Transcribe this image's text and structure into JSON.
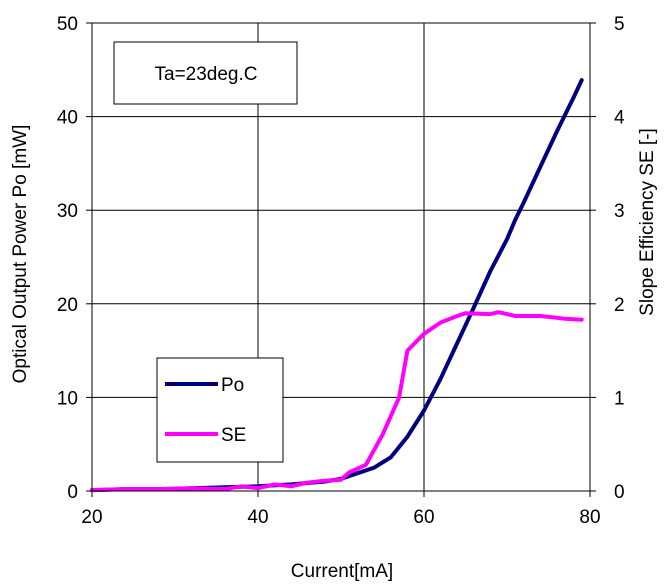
{
  "chart_data": {
    "type": "line",
    "xlabel": "Current[mA]",
    "ylabel_left": "Optical Output Power Po [mW]",
    "ylabel_right": "Slope Efficiency SE [-]",
    "xlim": [
      20,
      80
    ],
    "ylim_left": [
      0,
      50
    ],
    "ylim_right": [
      0,
      5
    ],
    "x_ticks": [
      "20",
      "40",
      "60",
      "80"
    ],
    "y_ticks_left": [
      "0",
      "10",
      "20",
      "30",
      "40",
      "50"
    ],
    "y_ticks_right": [
      "0",
      "1",
      "2",
      "3",
      "4",
      "5"
    ],
    "grid": true,
    "annotation": "Ta=23deg.C",
    "legend_position": "lower-left",
    "series": [
      {
        "name": "Po",
        "axis": "left",
        "color": "#00007f",
        "points": [
          [
            20,
            0.1
          ],
          [
            24,
            0.2
          ],
          [
            28,
            0.2
          ],
          [
            32,
            0.3
          ],
          [
            36,
            0.4
          ],
          [
            40,
            0.5
          ],
          [
            44,
            0.7
          ],
          [
            48,
            1.0
          ],
          [
            50,
            1.3
          ],
          [
            52,
            1.9
          ],
          [
            54,
            2.5
          ],
          [
            56,
            3.6
          ],
          [
            58,
            5.8
          ],
          [
            60,
            8.6
          ],
          [
            62,
            12.0
          ],
          [
            64,
            15.8
          ],
          [
            66,
            19.6
          ],
          [
            68,
            23.5
          ],
          [
            70,
            26.9
          ],
          [
            71,
            29.0
          ],
          [
            72,
            30.8
          ],
          [
            74,
            34.6
          ],
          [
            76,
            38.4
          ],
          [
            78,
            42.0
          ],
          [
            79,
            43.9
          ]
        ]
      },
      {
        "name": "SE",
        "axis": "right",
        "color": "#ff00ff",
        "points": [
          [
            20,
            0.01
          ],
          [
            24,
            0.02
          ],
          [
            28,
            0.02
          ],
          [
            32,
            0.03
          ],
          [
            36,
            0.02
          ],
          [
            38,
            0.05
          ],
          [
            40,
            0.03
          ],
          [
            42,
            0.07
          ],
          [
            44,
            0.05
          ],
          [
            46,
            0.09
          ],
          [
            48,
            0.11
          ],
          [
            50,
            0.12
          ],
          [
            51,
            0.2
          ],
          [
            53,
            0.28
          ],
          [
            55,
            0.6
          ],
          [
            57,
            1.0
          ],
          [
            58,
            1.5
          ],
          [
            60,
            1.68
          ],
          [
            62,
            1.8
          ],
          [
            64,
            1.87
          ],
          [
            65,
            1.9
          ],
          [
            68,
            1.89
          ],
          [
            69,
            1.91
          ],
          [
            71,
            1.87
          ],
          [
            74,
            1.87
          ],
          [
            76,
            1.85
          ],
          [
            77,
            1.84
          ],
          [
            79,
            1.83
          ]
        ]
      }
    ]
  }
}
